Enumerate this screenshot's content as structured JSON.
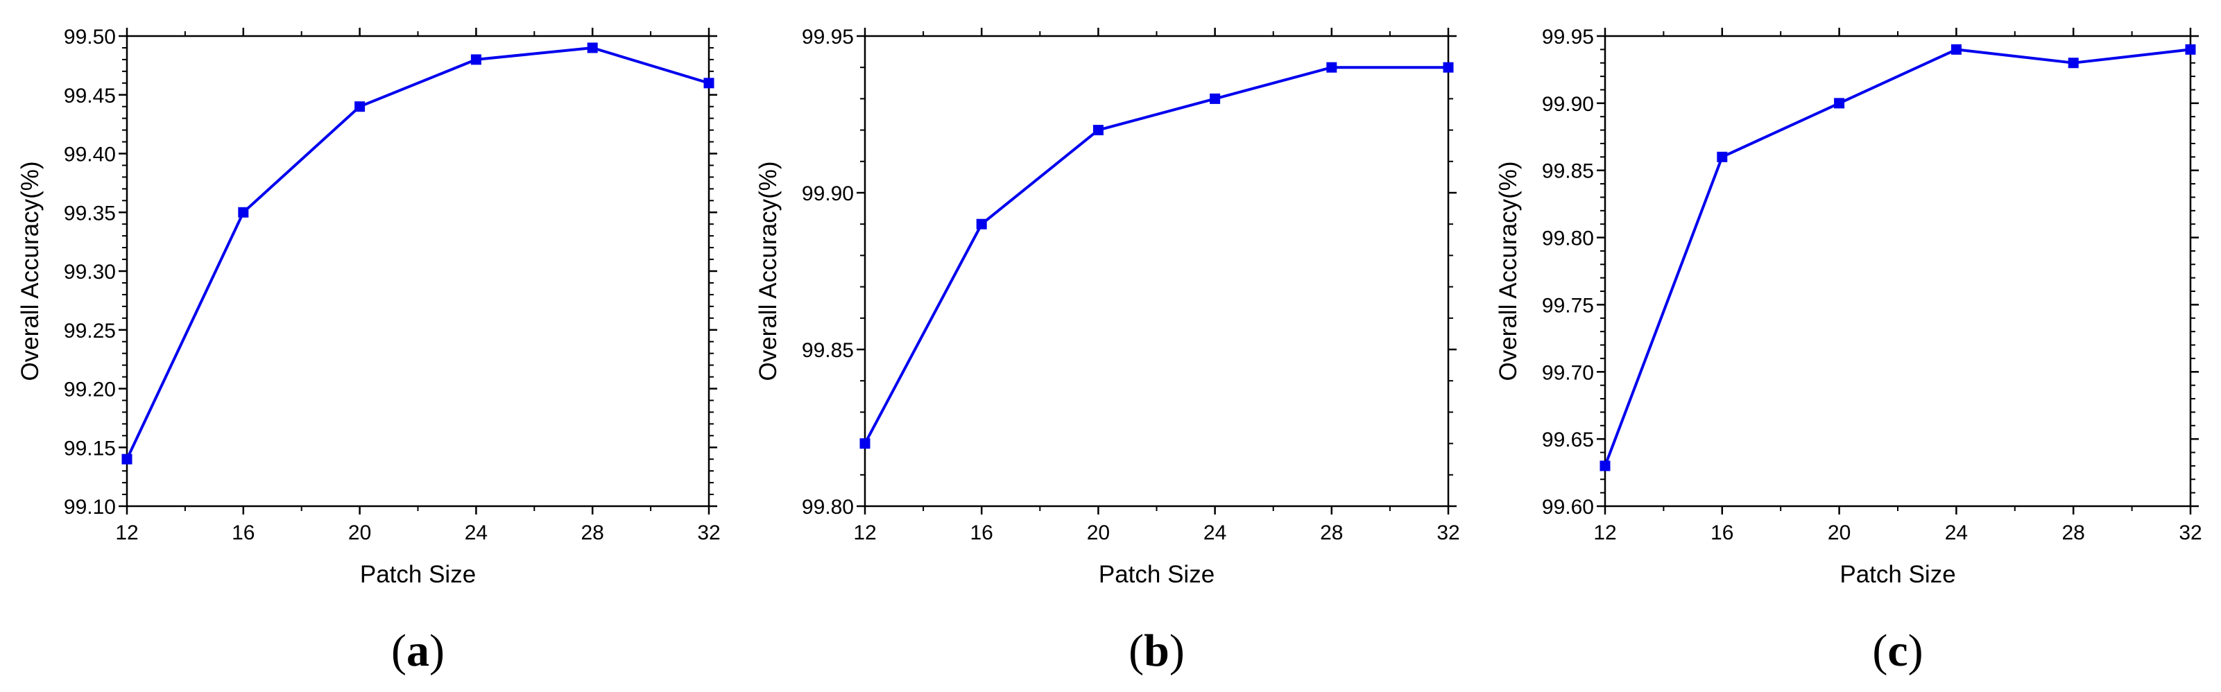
{
  "chart_data": [
    {
      "type": "line",
      "panel_label": "a",
      "title": "",
      "xlabel": "Patch Size",
      "ylabel": "Overall Accuracy(%)",
      "xlim": [
        12,
        32
      ],
      "ylim": [
        99.1,
        99.5
      ],
      "x_ticks": [
        "12",
        "16",
        "20",
        "24",
        "28",
        "32"
      ],
      "y_ticks": [
        "99.10",
        "99.15",
        "99.20",
        "99.25",
        "99.30",
        "99.35",
        "99.40",
        "99.45",
        "99.50"
      ],
      "grid": false,
      "color": "#0000ee",
      "marker": "square",
      "x": [
        12,
        16,
        20,
        24,
        28,
        32
      ],
      "y": [
        99.14,
        99.35,
        99.44,
        99.48,
        99.49,
        99.46
      ]
    },
    {
      "type": "line",
      "panel_label": "b",
      "title": "",
      "xlabel": "Patch Size",
      "ylabel": "Overall Accuracy(%)",
      "xlim": [
        12,
        32
      ],
      "ylim": [
        99.8,
        99.95
      ],
      "x_ticks": [
        "12",
        "16",
        "20",
        "24",
        "28",
        "32"
      ],
      "y_ticks": [
        "99.80",
        "99.85",
        "99.90",
        "99.95"
      ],
      "grid": false,
      "color": "#0000ee",
      "marker": "square",
      "x": [
        12,
        16,
        20,
        24,
        28,
        32
      ],
      "y": [
        99.82,
        99.89,
        99.92,
        99.93,
        99.94,
        99.94
      ]
    },
    {
      "type": "line",
      "panel_label": "c",
      "title": "",
      "xlabel": "Patch Size",
      "ylabel": "Overall Accuracy(%)",
      "xlim": [
        12,
        32
      ],
      "ylim": [
        99.6,
        99.95
      ],
      "x_ticks": [
        "12",
        "16",
        "20",
        "24",
        "28",
        "32"
      ],
      "y_ticks": [
        "99.60",
        "99.65",
        "99.70",
        "99.75",
        "99.80",
        "99.85",
        "99.90",
        "99.95"
      ],
      "grid": false,
      "color": "#0000ee",
      "marker": "square",
      "x": [
        12,
        16,
        20,
        24,
        28,
        32
      ],
      "y": [
        99.63,
        99.86,
        99.9,
        99.94,
        99.93,
        99.94
      ]
    }
  ]
}
